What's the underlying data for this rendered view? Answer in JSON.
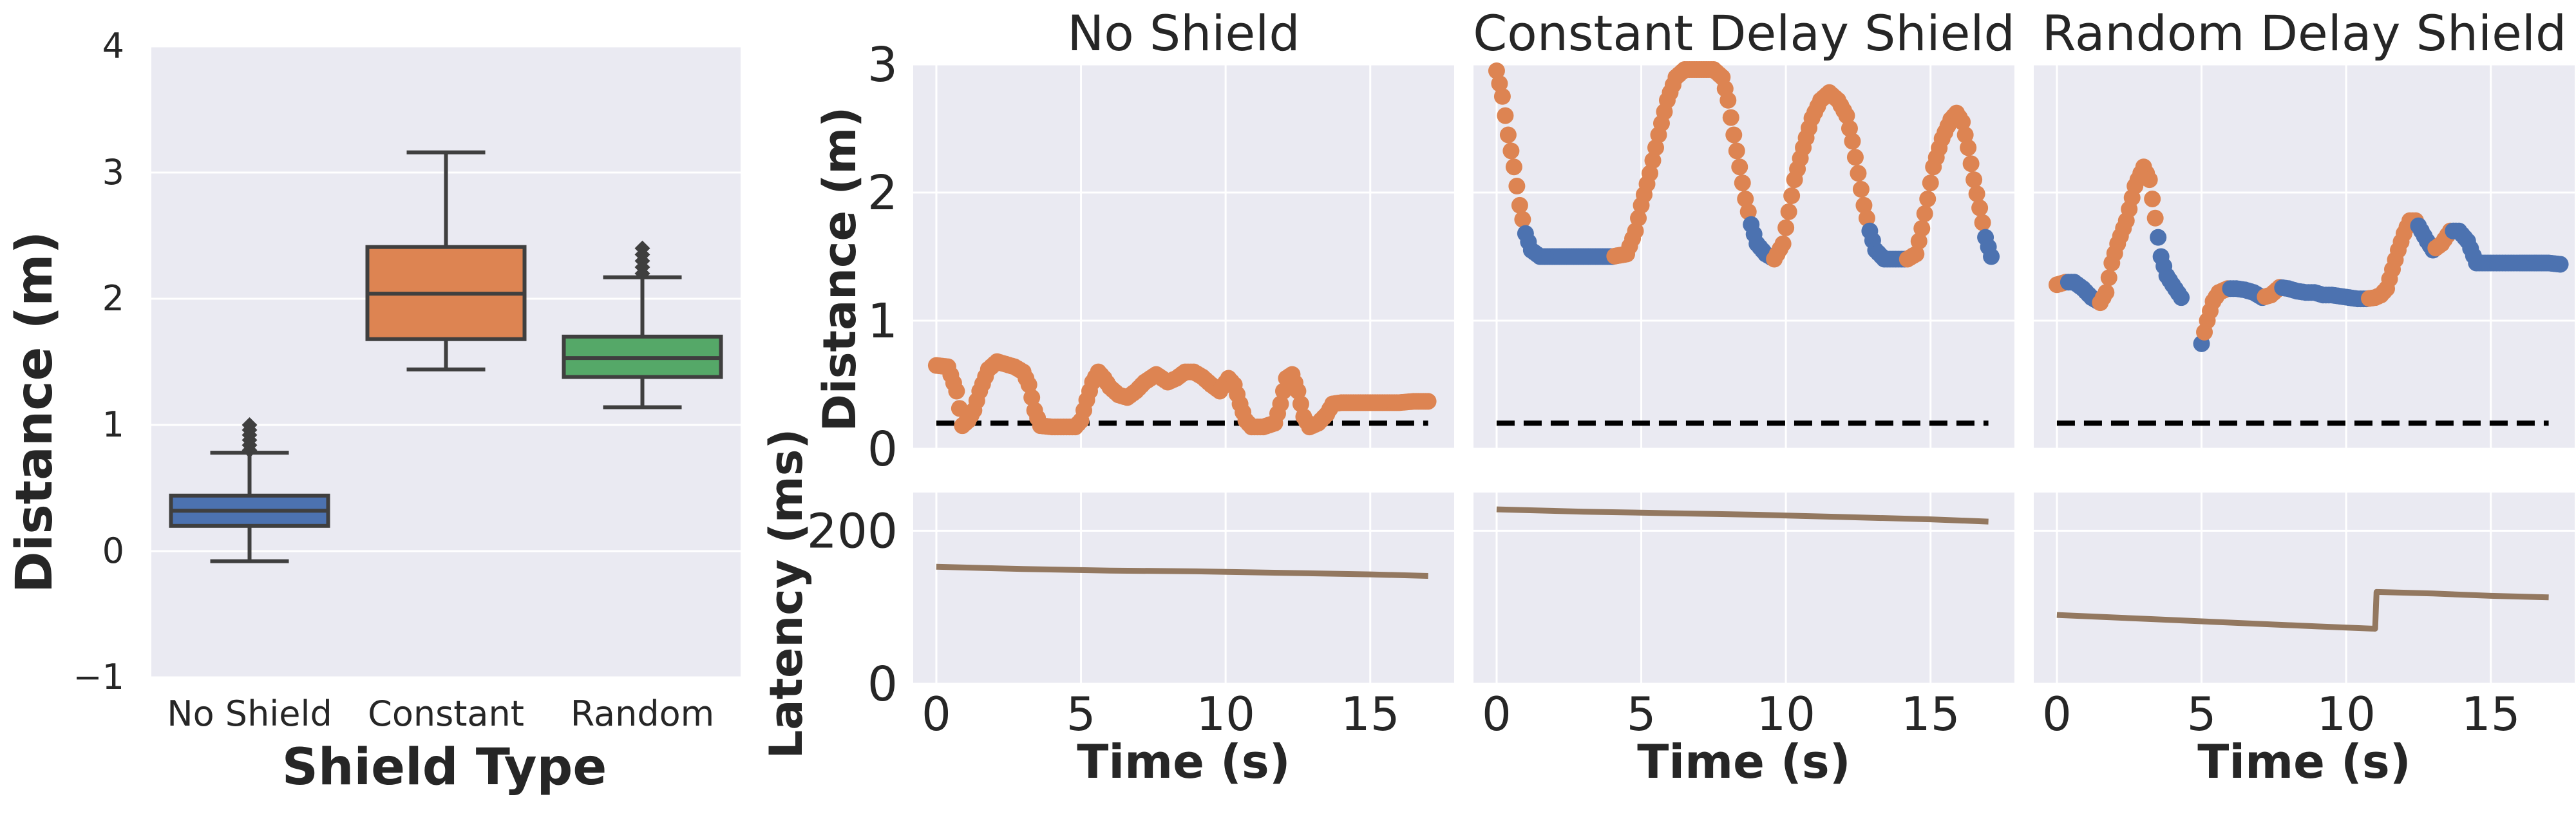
{
  "colors": {
    "no_shield": "#4c72b0",
    "constant": "#dd8452",
    "random": "#55a868",
    "safe_point": "#4c72b0",
    "unsafe_point": "#dd8452",
    "latency": "#937860",
    "threshold": "#000000",
    "whisker": "#3f3f3f"
  },
  "chart_data": [
    {
      "type": "box",
      "title": "",
      "xlabel": "Shield Type",
      "ylabel": "Distance (m)",
      "ylim": [
        -1,
        4
      ],
      "yticks": [
        -1,
        0,
        1,
        2,
        3,
        4
      ],
      "grid": true,
      "categories": [
        "No Shield",
        "Constant",
        "Random"
      ],
      "boxes": [
        {
          "category": "No Shield",
          "whislo": -0.08,
          "q1": 0.2,
          "median": 0.32,
          "q3": 0.44,
          "whishi": 0.78,
          "fliers": [
            0.8,
            0.84,
            0.88,
            0.92,
            0.96,
            1.0
          ]
        },
        {
          "category": "Constant",
          "whislo": 1.44,
          "q1": 1.68,
          "median": 2.04,
          "q3": 2.41,
          "whishi": 3.16,
          "fliers": []
        },
        {
          "category": "Random",
          "whislo": 1.14,
          "q1": 1.38,
          "median": 1.53,
          "q3": 1.7,
          "whishi": 2.17,
          "fliers": [
            2.2,
            2.25,
            2.3,
            2.35,
            2.4
          ]
        }
      ]
    },
    {
      "type": "scatter",
      "title": "No Shield",
      "xlabel": "Time (s)",
      "ylabel": "Distance (m)",
      "xlim": [
        -0.8,
        17.9
      ],
      "ylim": [
        0,
        3
      ],
      "xticks": [
        0,
        5,
        10,
        15
      ],
      "yticks": [
        0,
        1,
        2,
        3
      ],
      "grid": true,
      "threshold": 0.2,
      "series": [
        {
          "values_xy": [
            [
              0,
              0.65
            ],
            [
              0.4,
              0.64
            ],
            [
              0.7,
              0.45
            ],
            [
              0.9,
              0.18
            ],
            [
              1.1,
              0.22
            ],
            [
              1.3,
              0.3
            ],
            [
              1.5,
              0.45
            ],
            [
              1.8,
              0.62
            ],
            [
              2.1,
              0.68
            ],
            [
              2.4,
              0.66
            ],
            [
              2.7,
              0.64
            ],
            [
              3.0,
              0.6
            ],
            [
              3.2,
              0.5
            ],
            [
              3.4,
              0.3
            ],
            [
              3.6,
              0.18
            ],
            [
              4.0,
              0.17
            ],
            [
              4.4,
              0.17
            ],
            [
              4.8,
              0.17
            ],
            [
              5.0,
              0.22
            ],
            [
              5.2,
              0.38
            ],
            [
              5.4,
              0.52
            ],
            [
              5.6,
              0.6
            ],
            [
              5.8,
              0.55
            ],
            [
              6.0,
              0.48
            ],
            [
              6.3,
              0.42
            ],
            [
              6.6,
              0.4
            ],
            [
              6.9,
              0.45
            ],
            [
              7.2,
              0.52
            ],
            [
              7.6,
              0.58
            ],
            [
              8.0,
              0.52
            ],
            [
              8.3,
              0.55
            ],
            [
              8.6,
              0.6
            ],
            [
              8.9,
              0.6
            ],
            [
              9.2,
              0.56
            ],
            [
              9.5,
              0.5
            ],
            [
              9.8,
              0.45
            ],
            [
              10.1,
              0.55
            ],
            [
              10.3,
              0.5
            ],
            [
              10.5,
              0.35
            ],
            [
              10.7,
              0.22
            ],
            [
              10.9,
              0.17
            ],
            [
              11.3,
              0.17
            ],
            [
              11.7,
              0.2
            ],
            [
              11.9,
              0.35
            ],
            [
              12.1,
              0.55
            ],
            [
              12.3,
              0.58
            ],
            [
              12.5,
              0.45
            ],
            [
              12.7,
              0.25
            ],
            [
              12.9,
              0.17
            ],
            [
              13.2,
              0.2
            ],
            [
              13.5,
              0.27
            ],
            [
              13.7,
              0.35
            ],
            [
              14.0,
              0.36
            ],
            [
              14.5,
              0.36
            ],
            [
              15.0,
              0.36
            ],
            [
              15.5,
              0.36
            ],
            [
              16.0,
              0.36
            ],
            [
              16.5,
              0.37
            ],
            [
              17.0,
              0.37
            ]
          ]
        }
      ],
      "latency": {
        "ylim": [
          0,
          250
        ],
        "yticks": [
          0,
          200
        ],
        "values_xy": [
          [
            0,
            153
          ],
          [
            3,
            150
          ],
          [
            6,
            148
          ],
          [
            9,
            147
          ],
          [
            12,
            145
          ],
          [
            15,
            143
          ],
          [
            17,
            141
          ]
        ]
      }
    },
    {
      "type": "scatter",
      "title": "Constant Delay Shield",
      "xlabel": "Time (s)",
      "ylabel": "",
      "xlim": [
        -0.8,
        17.9
      ],
      "ylim": [
        0,
        3
      ],
      "xticks": [
        0,
        5,
        10,
        15
      ],
      "yticks": [
        0,
        1,
        2,
        3
      ],
      "grid": true,
      "threshold": 0.2,
      "series": [
        {
          "values_xy": [
            [
              0,
              2.95
            ],
            [
              0.2,
              2.75
            ],
            [
              0.4,
              2.45
            ],
            [
              0.6,
              2.2
            ],
            [
              0.8,
              1.9
            ],
            [
              1.0,
              1.68
            ],
            [
              1.2,
              1.55
            ],
            [
              1.5,
              1.5
            ],
            [
              2.0,
              1.5
            ],
            [
              2.5,
              1.5
            ],
            [
              3.0,
              1.5
            ],
            [
              3.5,
              1.5
            ],
            [
              4.0,
              1.5
            ],
            [
              4.5,
              1.52
            ],
            [
              4.8,
              1.7
            ],
            [
              5.0,
              1.9
            ],
            [
              5.3,
              2.15
            ],
            [
              5.6,
              2.45
            ],
            [
              5.9,
              2.72
            ],
            [
              6.2,
              2.9
            ],
            [
              6.5,
              2.96
            ],
            [
              7.0,
              2.96
            ],
            [
              7.5,
              2.96
            ],
            [
              7.8,
              2.9
            ],
            [
              8.0,
              2.72
            ],
            [
              8.2,
              2.45
            ],
            [
              8.4,
              2.2
            ],
            [
              8.6,
              1.95
            ],
            [
              8.8,
              1.75
            ],
            [
              9.0,
              1.6
            ],
            [
              9.3,
              1.52
            ],
            [
              9.6,
              1.48
            ],
            [
              9.9,
              1.6
            ],
            [
              10.1,
              1.85
            ],
            [
              10.3,
              2.1
            ],
            [
              10.6,
              2.35
            ],
            [
              10.9,
              2.58
            ],
            [
              11.2,
              2.72
            ],
            [
              11.5,
              2.78
            ],
            [
              11.8,
              2.72
            ],
            [
              12.1,
              2.6
            ],
            [
              12.3,
              2.4
            ],
            [
              12.5,
              2.15
            ],
            [
              12.7,
              1.9
            ],
            [
              12.9,
              1.7
            ],
            [
              13.1,
              1.55
            ],
            [
              13.4,
              1.48
            ],
            [
              13.8,
              1.48
            ],
            [
              14.2,
              1.48
            ],
            [
              14.5,
              1.52
            ],
            [
              14.7,
              1.72
            ],
            [
              14.9,
              1.95
            ],
            [
              15.1,
              2.2
            ],
            [
              15.4,
              2.42
            ],
            [
              15.7,
              2.57
            ],
            [
              15.9,
              2.62
            ],
            [
              16.1,
              2.55
            ],
            [
              16.3,
              2.35
            ],
            [
              16.5,
              2.1
            ],
            [
              16.7,
              1.88
            ],
            [
              16.9,
              1.65
            ],
            [
              17.1,
              1.5
            ]
          ]
        }
      ],
      "latency": {
        "ylim": [
          0,
          250
        ],
        "yticks": [
          0,
          200
        ],
        "values_xy": [
          [
            0,
            228
          ],
          [
            3,
            225
          ],
          [
            6,
            223
          ],
          [
            9,
            221
          ],
          [
            12,
            218
          ],
          [
            15,
            215
          ],
          [
            17,
            212
          ]
        ]
      }
    },
    {
      "type": "scatter",
      "title": "Random Delay Shield",
      "xlabel": "Time (s)",
      "ylabel": "",
      "xlim": [
        -0.8,
        17.9
      ],
      "ylim": [
        0,
        3
      ],
      "xticks": [
        0,
        5,
        10,
        15
      ],
      "yticks": [
        0,
        1,
        2,
        3
      ],
      "grid": true,
      "threshold": 0.2,
      "series": [
        {
          "values_xy": [
            [
              0,
              1.28
            ],
            [
              0.3,
              1.3
            ],
            [
              0.6,
              1.3
            ],
            [
              0.9,
              1.25
            ],
            [
              1.2,
              1.18
            ],
            [
              1.5,
              1.14
            ],
            [
              1.7,
              1.22
            ],
            [
              1.9,
              1.45
            ],
            [
              2.1,
              1.6
            ],
            [
              2.4,
              1.78
            ],
            [
              2.7,
              2.05
            ],
            [
              3.0,
              2.2
            ],
            [
              3.2,
              2.1
            ],
            [
              3.4,
              1.8
            ],
            [
              3.6,
              1.5
            ],
            [
              3.8,
              1.35
            ],
            [
              4.0,
              1.28
            ],
            [
              4.3,
              1.18
            ],
            [
              5.0,
              0.82
            ],
            [
              5.2,
              1.0
            ],
            [
              5.4,
              1.15
            ],
            [
              5.6,
              1.22
            ],
            [
              5.9,
              1.25
            ],
            [
              6.2,
              1.25
            ],
            [
              6.5,
              1.24
            ],
            [
              6.8,
              1.22
            ],
            [
              7.1,
              1.18
            ],
            [
              7.4,
              1.2
            ],
            [
              7.7,
              1.26
            ],
            [
              8.0,
              1.25
            ],
            [
              8.3,
              1.23
            ],
            [
              8.6,
              1.22
            ],
            [
              8.9,
              1.22
            ],
            [
              9.2,
              1.2
            ],
            [
              9.5,
              1.2
            ],
            [
              9.8,
              1.19
            ],
            [
              10.1,
              1.18
            ],
            [
              10.4,
              1.17
            ],
            [
              10.7,
              1.17
            ],
            [
              11.0,
              1.18
            ],
            [
              11.2,
              1.2
            ],
            [
              11.4,
              1.25
            ],
            [
              11.6,
              1.4
            ],
            [
              11.8,
              1.55
            ],
            [
              12.0,
              1.68
            ],
            [
              12.2,
              1.78
            ],
            [
              12.4,
              1.78
            ],
            [
              12.6,
              1.7
            ],
            [
              12.8,
              1.62
            ],
            [
              13.0,
              1.55
            ],
            [
              13.3,
              1.6
            ],
            [
              13.6,
              1.7
            ],
            [
              13.9,
              1.7
            ],
            [
              14.2,
              1.62
            ],
            [
              14.5,
              1.45
            ],
            [
              14.8,
              1.45
            ],
            [
              15.2,
              1.45
            ],
            [
              15.6,
              1.45
            ],
            [
              16.0,
              1.45
            ],
            [
              16.5,
              1.45
            ],
            [
              17.0,
              1.45
            ],
            [
              17.4,
              1.44
            ]
          ]
        }
      ],
      "latency": {
        "ylim": [
          0,
          250
        ],
        "yticks": [
          0,
          200
        ],
        "values_xy": [
          [
            0,
            90
          ],
          [
            3,
            85
          ],
          [
            6,
            80
          ],
          [
            9,
            75
          ],
          [
            11,
            72
          ],
          [
            11.05,
            120
          ],
          [
            13,
            118
          ],
          [
            15,
            115
          ],
          [
            17,
            113
          ]
        ]
      }
    }
  ],
  "shared_labels": {
    "latency_ylabel": "Latency (ms)"
  }
}
